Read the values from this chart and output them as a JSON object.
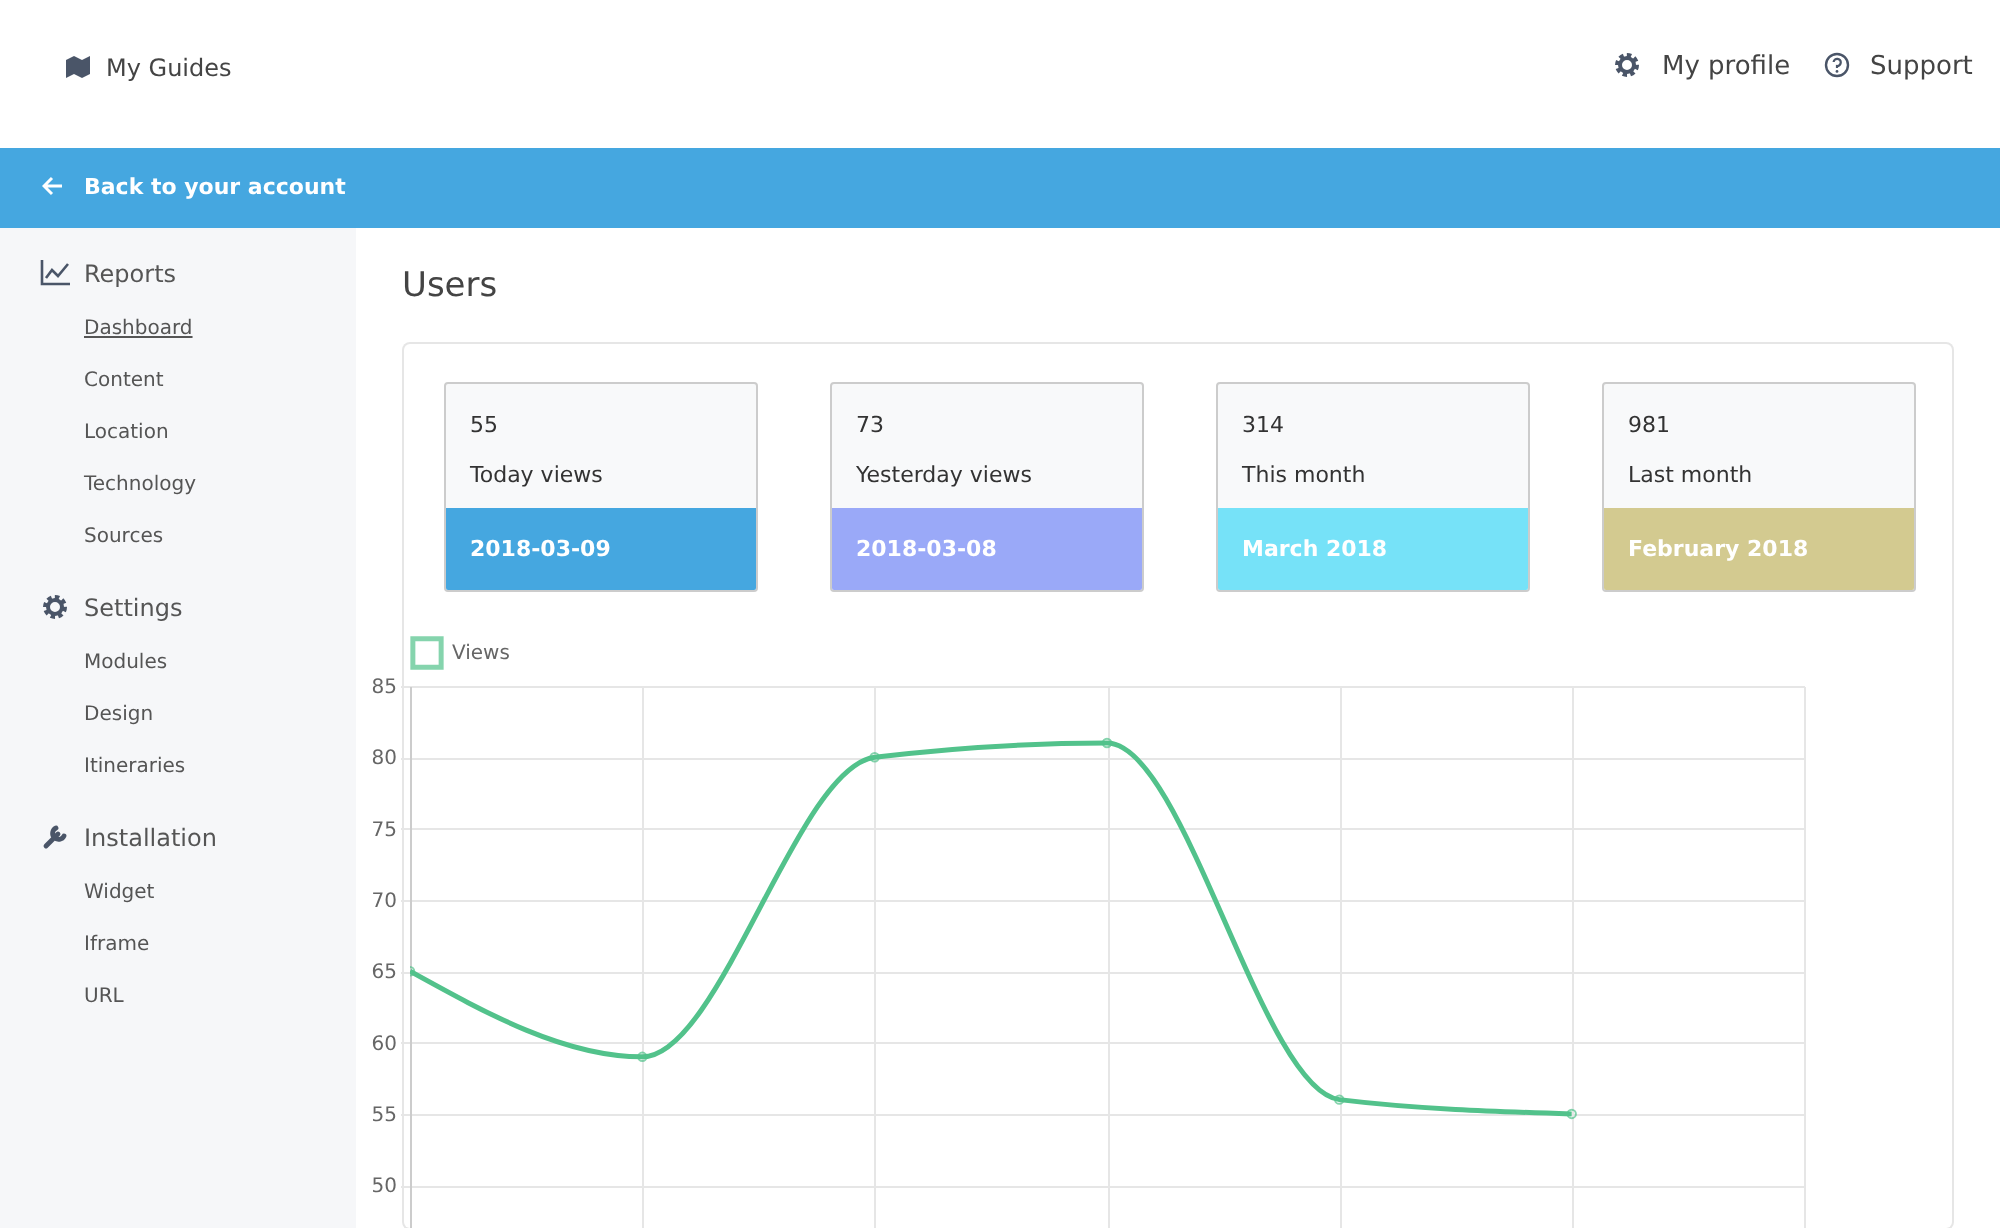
{
  "chart_data": [
    {
      "type": "other",
      "annotations": [
        "My Guides",
        "My profile",
        "Support",
        "Back to your account",
        "Reports",
        "Dashboard",
        "Content",
        "Location",
        "Technology",
        "Sources",
        "Settings",
        "Modules",
        "Design",
        "Itineraries",
        "Installation",
        "Widget",
        "Iframe",
        "URL"
      ]
    },
    {
      "type": "other",
      "title": "Users",
      "categories": [
        "2018-03-09",
        "2018-03-08",
        "March 2018",
        "February 2018"
      ],
      "annotations": [
        "55",
        "Today views",
        "73",
        "Yesterday views",
        "314",
        "This month",
        "981",
        "Last month"
      ],
      "colors": [
        "#45a7e0",
        "#9aa9f8",
        "#76e2f8",
        "#d3ca90"
      ]
    },
    {
      "type": "line",
      "categories": [
        null,
        null,
        null,
        null,
        null,
        null,
        null
      ],
      "series": [
        {
          "name": "Views",
          "color": "#52c28b",
          "values": [
            65,
            59,
            80,
            81,
            56,
            55,
            null
          ]
        }
      ],
      "ylim": [
        47,
        85
      ],
      "yticks": [
        50,
        55,
        60,
        65,
        70,
        75,
        80,
        85
      ],
      "grid": true,
      "legend": "top",
      "marker": "circle",
      "line_style": "solid"
    }
  ]
}
